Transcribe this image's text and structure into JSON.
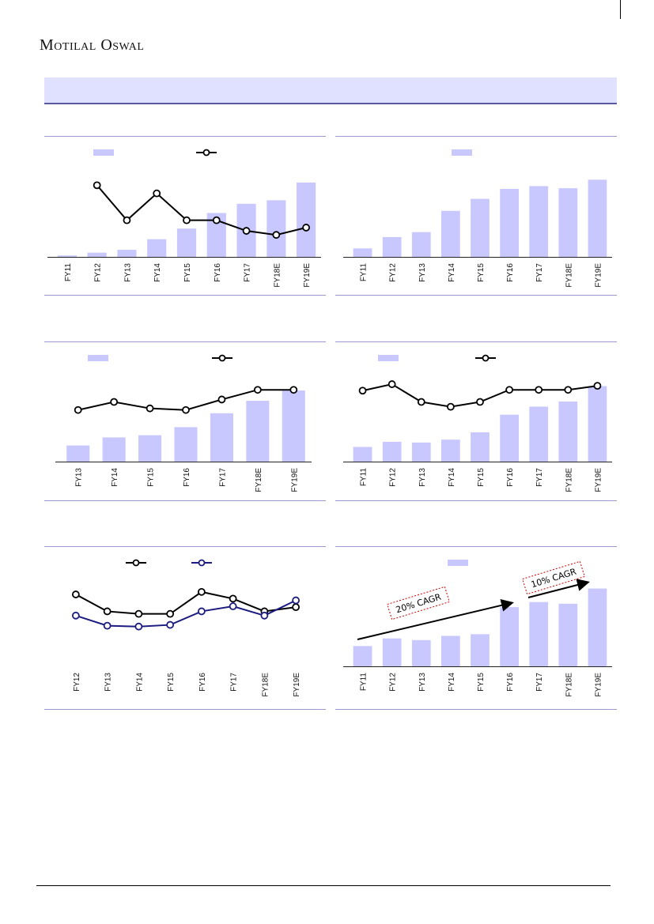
{
  "header": {
    "brand": "Motilal Oswal"
  },
  "colors": {
    "bar": "#c8c8ff",
    "line_black": "#000000",
    "line_navy": "#1c1c80",
    "annotation": "#cc0000"
  },
  "chart_data": [
    {
      "type": "bar+line",
      "categories": [
        "FY11",
        "FY12",
        "FY13",
        "FY14",
        "FY15",
        "FY16",
        "FY17",
        "FY18E",
        "FY19E"
      ],
      "series": [
        {
          "type": "bar",
          "values": [
            2,
            6,
            10,
            25,
            40,
            62,
            75,
            80,
            105
          ]
        },
        {
          "type": "line",
          "values": [
            null,
            88,
            45,
            78,
            45,
            45,
            32,
            27,
            36
          ]
        }
      ],
      "ylim": [
        0,
        115
      ],
      "line_ylim": [
        0,
        100
      ],
      "legend_position": "top"
    },
    {
      "type": "bar",
      "categories": [
        "FY11",
        "FY12",
        "FY13",
        "FY14",
        "FY15",
        "FY16",
        "FY17",
        "FY18E",
        "FY19E"
      ],
      "series": [
        {
          "type": "bar",
          "values": [
            12,
            28,
            35,
            65,
            82,
            96,
            100,
            97,
            109
          ]
        }
      ],
      "ylim": [
        0,
        115
      ],
      "legend_position": "top"
    },
    {
      "type": "bar+line",
      "categories": [
        "FY13",
        "FY14",
        "FY15",
        "FY16",
        "FY17",
        "FY18E",
        "FY19E"
      ],
      "series": [
        {
          "type": "bar",
          "values": [
            22,
            33,
            36,
            47,
            66,
            83,
            97
          ]
        },
        {
          "type": "line",
          "values": [
            64,
            74,
            66,
            64,
            77,
            89,
            89
          ]
        }
      ],
      "ylim": [
        0,
        110
      ],
      "line_ylim": [
        0,
        100
      ],
      "legend_position": "top"
    },
    {
      "type": "bar+line",
      "categories": [
        "FY11",
        "FY12",
        "FY13",
        "FY14",
        "FY15",
        "FY16",
        "FY17",
        "FY18E",
        "FY19E"
      ],
      "series": [
        {
          "type": "bar",
          "values": [
            20,
            27,
            26,
            30,
            40,
            64,
            75,
            82,
            103
          ]
        },
        {
          "type": "line",
          "values": [
            88,
            96,
            74,
            68,
            74,
            89,
            89,
            89,
            94
          ]
        }
      ],
      "ylim": [
        0,
        110
      ],
      "line_ylim": [
        0,
        100
      ],
      "legend_position": "top"
    },
    {
      "type": "line",
      "categories": [
        "FY12",
        "FY13",
        "FY14",
        "FY15",
        "FY16",
        "FY17",
        "FY18E",
        "FY19E"
      ],
      "series": [
        {
          "type": "line",
          "values": [
            85,
            65,
            62,
            62,
            88,
            80,
            65,
            70
          ]
        },
        {
          "type": "line",
          "values": [
            60,
            48,
            47,
            49,
            65,
            71,
            60,
            78
          ]
        }
      ],
      "ylim": [
        0,
        100
      ],
      "legend_position": "top"
    },
    {
      "type": "bar",
      "categories": [
        "FY11",
        "FY12",
        "FY13",
        "FY14",
        "FY15",
        "FY16",
        "FY17",
        "FY18E",
        "FY19E"
      ],
      "series": [
        {
          "type": "bar",
          "values": [
            24,
            33,
            31,
            36,
            38,
            70,
            76,
            74,
            92
          ]
        }
      ],
      "ylim": [
        0,
        100
      ],
      "legend_position": "top",
      "annotations": [
        {
          "text": "20% CAGR"
        },
        {
          "text": "10% CAGR"
        }
      ]
    }
  ]
}
